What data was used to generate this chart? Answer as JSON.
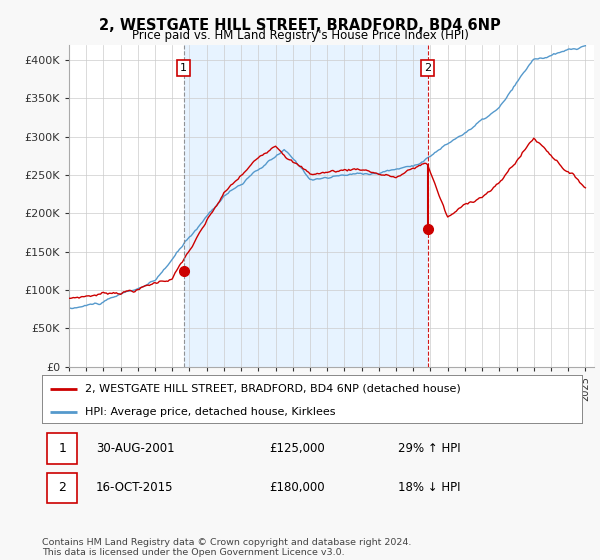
{
  "title": "2, WESTGATE HILL STREET, BRADFORD, BD4 6NP",
  "subtitle": "Price paid vs. HM Land Registry's House Price Index (HPI)",
  "legend_line1": "2, WESTGATE HILL STREET, BRADFORD, BD4 6NP (detached house)",
  "legend_line2": "HPI: Average price, detached house, Kirklees",
  "sale1_date": "30-AUG-2001",
  "sale1_price": "£125,000",
  "sale1_hpi": "29% ↑ HPI",
  "sale2_date": "16-OCT-2015",
  "sale2_price": "£180,000",
  "sale2_hpi": "18% ↓ HPI",
  "footer": "Contains HM Land Registry data © Crown copyright and database right 2024.\nThis data is licensed under the Open Government Licence v3.0.",
  "hpi_color": "#5599cc",
  "price_color": "#cc0000",
  "shade_color": "#ddeeff",
  "ylim_min": 0,
  "ylim_max": 420000,
  "yticks": [
    0,
    50000,
    100000,
    150000,
    200000,
    250000,
    300000,
    350000,
    400000
  ],
  "ytick_labels": [
    "£0",
    "£50K",
    "£100K",
    "£150K",
    "£200K",
    "£250K",
    "£300K",
    "£350K",
    "£400K"
  ],
  "background_color": "#f8f8f8",
  "plot_bg_color": "#ffffff"
}
